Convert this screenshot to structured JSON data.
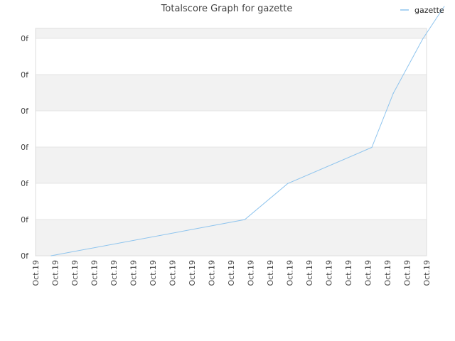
{
  "chart_data": {
    "type": "line",
    "title": "Totalscore Graph for gazette",
    "xlabel": "",
    "ylabel": "",
    "y_tick_labels": [
      "0f",
      "0f",
      "0f",
      "0f",
      "0f",
      "0f",
      "0f"
    ],
    "x_tick_labels": [
      "Oct.19",
      "Oct.19",
      "Oct.19",
      "Oct.19",
      "Oct.19",
      "Oct.19",
      "Oct.19",
      "Oct.19",
      "Oct.19",
      "Oct.19",
      "Oct.19",
      "Oct.19",
      "Oct.19",
      "Oct.19",
      "Oct.19",
      "Oct.19",
      "Oct.19",
      "Oct.19",
      "Oct.19",
      "Oct.19",
      "Oct.19"
    ],
    "x": [
      0.8,
      10.7,
      12.9,
      17.2,
      18.3,
      19.8,
      20.9
    ],
    "ylim": [
      0,
      6
    ],
    "xlim": [
      0,
      20
    ],
    "series": [
      {
        "name": "gazette",
        "color": "#8ec4ee",
        "values": [
          0,
          1,
          2,
          3,
          4.5,
          6,
          6.9
        ]
      }
    ],
    "grid": true,
    "legend_position": "top-right"
  }
}
